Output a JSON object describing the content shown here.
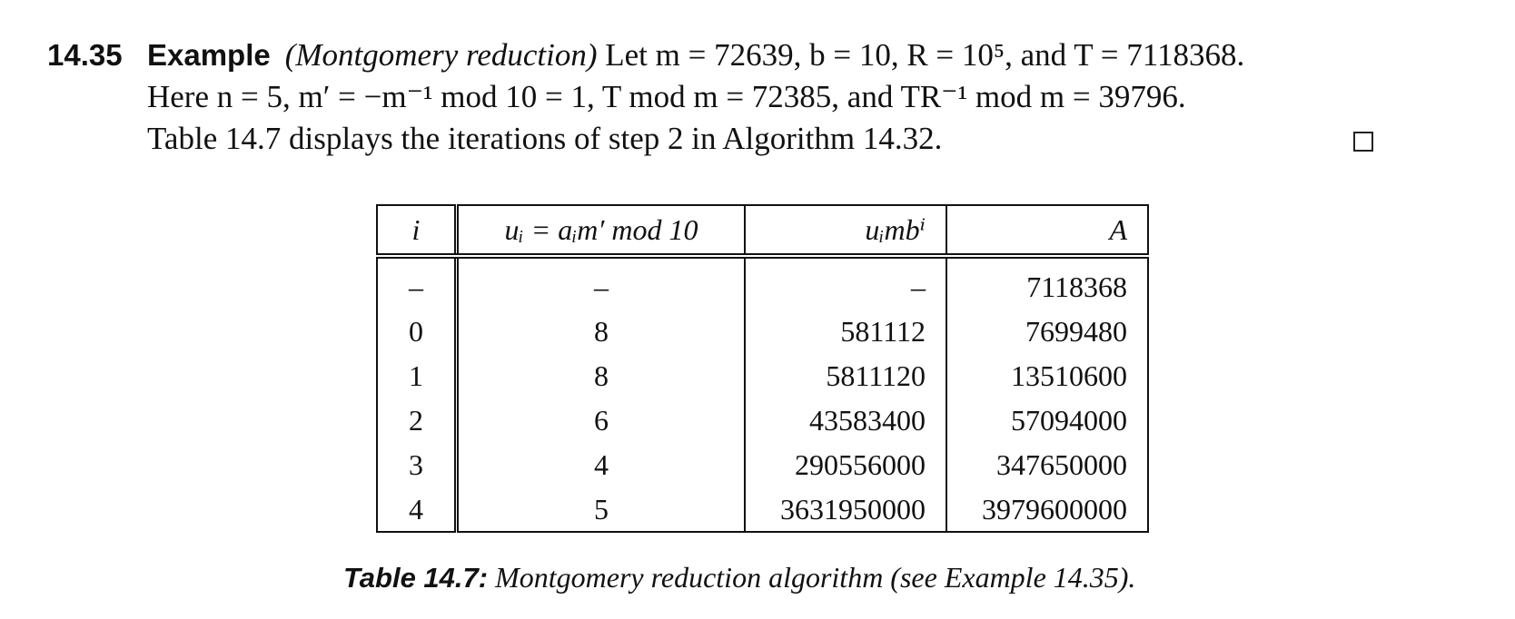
{
  "example": {
    "number": "14.35",
    "keyword": "Example",
    "title": "(Montgomery reduction)",
    "line1_rest": " Let m = 72639, b = 10, R = 10⁵, and T = 7118368.",
    "line2": "Here n = 5, m′ = −m⁻¹ mod 10 = 1, T mod m = 72385, and TR⁻¹ mod m = 39796.",
    "line3": "Table 14.7 displays the iterations of step 2 in Algorithm 14.32."
  },
  "table": {
    "headers": [
      "i",
      "uᵢ = aᵢm′ mod 10",
      "uᵢmbⁱ",
      "A"
    ],
    "rows": [
      [
        "–",
        "–",
        "–",
        "7118368"
      ],
      [
        "0",
        "8",
        "581112",
        "7699480"
      ],
      [
        "1",
        "8",
        "5811120",
        "13510600"
      ],
      [
        "2",
        "6",
        "43583400",
        "57094000"
      ],
      [
        "3",
        "4",
        "290556000",
        "347650000"
      ],
      [
        "4",
        "5",
        "3631950000",
        "3979600000"
      ]
    ]
  },
  "caption": {
    "label": "Table 14.7:",
    "text": "Montgomery reduction algorithm (see Example 14.35)."
  }
}
